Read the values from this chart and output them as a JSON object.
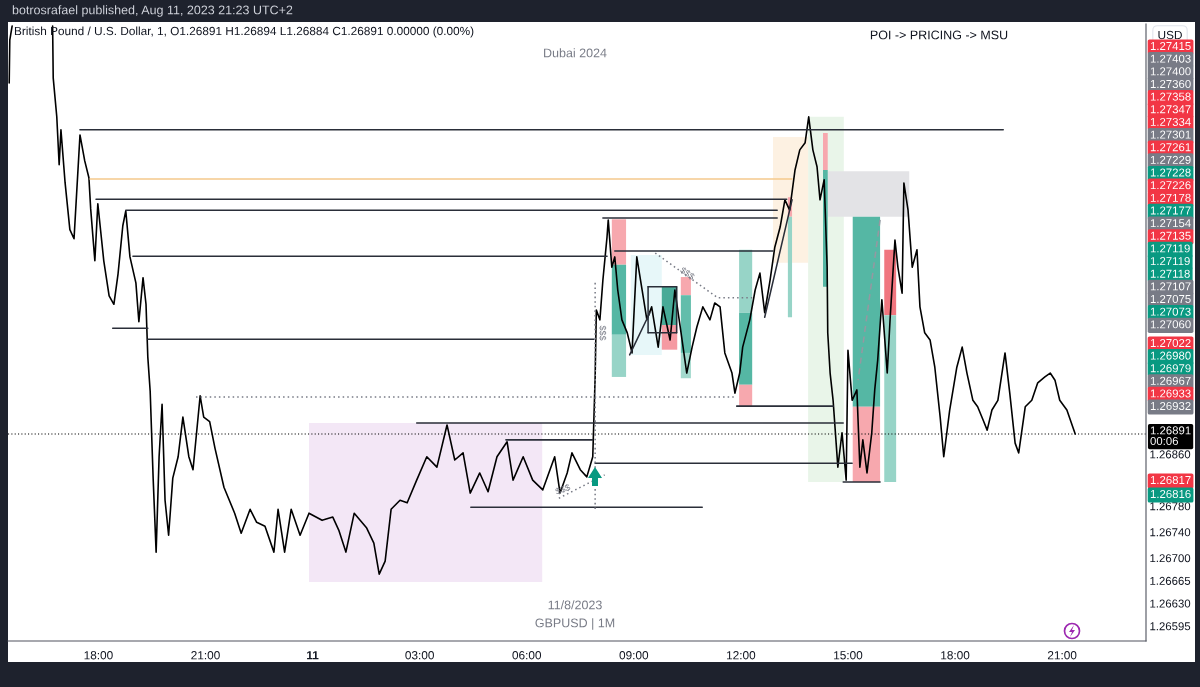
{
  "chart_data": {
    "type": "line",
    "title": "British Pound / U.S. Dollar, 1, O1.26891 H1.26894 L1.26884 C1.26891 0.00000 (0.00%)",
    "ylabel": "USD",
    "xlim": [
      "2023-08-10T15:28",
      "2023-08-11T23:21"
    ],
    "ylim": [
      1.26572,
      1.27523
    ],
    "xticks": [
      {
        "value": "2023-08-10T18:00",
        "label": "18:00"
      },
      {
        "value": "2023-08-10T21:00",
        "label": "21:00"
      },
      {
        "value": "2023-08-11T00:00",
        "label": "11"
      },
      {
        "value": "2023-08-11T03:00",
        "label": "03:00"
      },
      {
        "value": "2023-08-11T06:00",
        "label": "06:00"
      },
      {
        "value": "2023-08-11T09:00",
        "label": "09:00"
      },
      {
        "value": "2023-08-11T12:00",
        "label": "12:00"
      },
      {
        "value": "2023-08-11T15:00",
        "label": "15:00"
      },
      {
        "value": "2023-08-11T18:00",
        "label": "18:00"
      },
      {
        "value": "2023-08-11T21:00",
        "label": "21:00"
      }
    ],
    "yticks": [
      1.26595,
      {
        "value": 1.2663,
        "label": "1.26630"
      },
      1.26665,
      {
        "value": 1.267,
        "label": "1.26700"
      },
      {
        "value": 1.2674,
        "label": "1.26740"
      },
      {
        "value": 1.2678,
        "label": "1.26780"
      },
      {
        "value": 1.2686,
        "label": "1.26860"
      }
    ],
    "series": [
      {
        "color": "#000000",
        "x": [
          "2023-08-10T15:30",
          "2023-08-10T15:31",
          "2023-08-10T15:35",
          "2023-08-10T16:05",
          "2023-08-10T16:43",
          "2023-08-10T16:44",
          "2023-08-10T16:50",
          "2023-08-10T16:54",
          "2023-08-10T16:57",
          "2023-08-10T17:04",
          "2023-08-10T17:12",
          "2023-08-10T17:19",
          "2023-08-10T17:29",
          "2023-08-10T17:37",
          "2023-08-10T17:44",
          "2023-08-10T17:47",
          "2023-08-10T17:54",
          "2023-08-10T17:59",
          "2023-08-10T18:09",
          "2023-08-10T18:18",
          "2023-08-10T18:26",
          "2023-08-10T18:33",
          "2023-08-10T18:41",
          "2023-08-10T18:46",
          "2023-08-10T18:53",
          "2023-08-10T19:03",
          "2023-08-10T19:08",
          "2023-08-10T19:15",
          "2023-08-10T19:20",
          "2023-08-10T19:23",
          "2023-08-10T19:27",
          "2023-08-10T19:32",
          "2023-08-10T19:37",
          "2023-08-10T19:42",
          "2023-08-10T19:47",
          "2023-08-10T19:52",
          "2023-08-10T19:58",
          "2023-08-10T20:05",
          "2023-08-10T20:14",
          "2023-08-10T20:22",
          "2023-08-10T20:32",
          "2023-08-10T20:39",
          "2023-08-10T20:51",
          "2023-08-10T20:57",
          "2023-08-10T21:07",
          "2023-08-10T21:16",
          "2023-08-10T21:31",
          "2023-08-10T21:49",
          "2023-08-10T22:00",
          "2023-08-10T22:15",
          "2023-08-10T22:26",
          "2023-08-10T22:40",
          "2023-08-10T22:55",
          "2023-08-10T23:02",
          "2023-08-10T23:13",
          "2023-08-10T23:24",
          "2023-08-10T23:39",
          "2023-08-10T23:54",
          "2023-08-11T00:16",
          "2023-08-11T00:34",
          "2023-08-11T00:44",
          "2023-08-11T00:56",
          "2023-08-11T01:10",
          "2023-08-11T01:31",
          "2023-08-11T01:43",
          "2023-08-11T01:52",
          "2023-08-11T02:02",
          "2023-08-11T02:12",
          "2023-08-11T02:27",
          "2023-08-11T02:39",
          "2023-08-11T02:55",
          "2023-08-11T03:12",
          "2023-08-11T03:29",
          "2023-08-11T03:46",
          "2023-08-11T03:59",
          "2023-08-11T04:13",
          "2023-08-11T04:25",
          "2023-08-11T04:41",
          "2023-08-11T04:55",
          "2023-08-11T05:10",
          "2023-08-11T05:27",
          "2023-08-11T05:37",
          "2023-08-11T05:54",
          "2023-08-11T06:10",
          "2023-08-11T06:27",
          "2023-08-11T06:47",
          "2023-08-11T06:56",
          "2023-08-11T07:08",
          "2023-08-11T07:16",
          "2023-08-11T07:30",
          "2023-08-11T07:41",
          "2023-08-11T07:51",
          "2023-08-11T07:55",
          "2023-08-11T07:57",
          "2023-08-11T08:03",
          "2023-08-11T08:08",
          "2023-08-11T08:15",
          "2023-08-11T08:17",
          "2023-08-11T08:23",
          "2023-08-11T08:28",
          "2023-08-11T08:33",
          "2023-08-11T08:40",
          "2023-08-11T08:49",
          "2023-08-11T08:57",
          "2023-08-11T09:05",
          "2023-08-11T09:14",
          "2023-08-11T09:22",
          "2023-08-11T09:30",
          "2023-08-11T09:41",
          "2023-08-11T09:49",
          "2023-08-11T10:01",
          "2023-08-11T10:09",
          "2023-08-11T10:18",
          "2023-08-11T10:29",
          "2023-08-11T10:38",
          "2023-08-11T10:46",
          "2023-08-11T10:56",
          "2023-08-11T11:08",
          "2023-08-11T11:16",
          "2023-08-11T11:25",
          "2023-08-11T11:33",
          "2023-08-11T11:45",
          "2023-08-11T11:50",
          "2023-08-11T11:58",
          "2023-08-11T12:03",
          "2023-08-11T12:15",
          "2023-08-11T12:24",
          "2023-08-11T12:32",
          "2023-08-11T12:40",
          "2023-08-11T12:49",
          "2023-08-11T12:57",
          "2023-08-11T13:06",
          "2023-08-11T13:14",
          "2023-08-11T13:22",
          "2023-08-11T13:31",
          "2023-08-11T13:39",
          "2023-08-11T13:48",
          "2023-08-11T13:54",
          "2023-08-11T14:01",
          "2023-08-11T14:08",
          "2023-08-11T14:13",
          "2023-08-11T14:20",
          "2023-08-11T14:25",
          "2023-08-11T14:26",
          "2023-08-11T14:30",
          "2023-08-11T14:35",
          "2023-08-11T14:43",
          "2023-08-11T14:50",
          "2023-08-11T14:57",
          "2023-08-11T15:00",
          "2023-08-11T15:07",
          "2023-08-11T15:15",
          "2023-08-11T15:20",
          "2023-08-11T15:25",
          "2023-08-11T15:32",
          "2023-08-11T15:40",
          "2023-08-11T15:45",
          "2023-08-11T15:50",
          "2023-08-11T15:57",
          "2023-08-11T16:06",
          "2023-08-11T16:11",
          "2023-08-11T16:19",
          "2023-08-11T16:24",
          "2023-08-11T16:31",
          "2023-08-11T16:34",
          "2023-08-11T16:41",
          "2023-08-11T16:48",
          "2023-08-11T16:56",
          "2023-08-11T17:01",
          "2023-08-11T17:09",
          "2023-08-11T17:18",
          "2023-08-11T17:26",
          "2023-08-11T17:35",
          "2023-08-11T17:41",
          "2023-08-11T17:51",
          "2023-08-11T18:03",
          "2023-08-11T18:12",
          "2023-08-11T18:20",
          "2023-08-11T18:30",
          "2023-08-11T18:38",
          "2023-08-11T18:47",
          "2023-08-11T18:54",
          "2023-08-11T19:02",
          "2023-08-11T19:12",
          "2023-08-11T19:24",
          "2023-08-11T19:32",
          "2023-08-11T19:41",
          "2023-08-11T19:47",
          "2023-08-11T19:58",
          "2023-08-11T20:09",
          "2023-08-11T20:19",
          "2023-08-11T20:31",
          "2023-08-11T20:40",
          "2023-08-11T20:48",
          "2023-08-11T20:56",
          "2023-08-11T21:08",
          "2023-08-11T21:22"
        ],
        "values": [
          1.27432,
          1.27498,
          1.2752,
          null,
          1.2752,
          1.2744,
          1.2738,
          1.27306,
          1.2736,
          1.27278,
          1.27206,
          1.27192,
          1.27352,
          1.27312,
          1.27286,
          1.27238,
          1.27158,
          1.27246,
          1.27158,
          1.27104,
          1.27091,
          1.27138,
          1.27212,
          1.27235,
          1.27164,
          1.27124,
          1.27064,
          1.27132,
          1.27091,
          1.2701,
          1.26957,
          1.26823,
          1.26709,
          1.26856,
          1.26937,
          1.26789,
          1.26735,
          1.26823,
          1.26856,
          1.26917,
          1.26856,
          1.26836,
          1.2695,
          1.26917,
          1.2691,
          1.26869,
          1.26809,
          1.26769,
          1.26738,
          1.26775,
          1.26755,
          1.26749,
          1.26709,
          1.26775,
          1.26709,
          1.26775,
          1.26735,
          1.26769,
          1.26758,
          1.26763,
          1.26743,
          1.26709,
          1.26769,
          1.26746,
          1.26723,
          1.26675,
          1.26695,
          1.26775,
          1.26789,
          1.26785,
          1.2682,
          1.26856,
          1.2684,
          1.26905,
          1.26851,
          1.26862,
          1.268,
          1.26831,
          1.26802,
          1.26856,
          1.26879,
          1.2682,
          1.26856,
          1.2682,
          1.26805,
          1.26856,
          1.268,
          1.26831,
          1.26862,
          1.26836,
          1.26825,
          1.26856,
          1.26979,
          1.27082,
          1.27067,
          1.27128,
          1.27195,
          1.27221,
          1.27148,
          1.27164,
          1.27113,
          1.27067,
          1.27047,
          1.27016,
          1.27164,
          1.27113,
          1.27067,
          1.27087,
          1.27025,
          1.27087,
          1.27036,
          1.27113,
          1.27056,
          1.26985,
          1.27025,
          1.27056,
          1.27087,
          1.27067,
          1.27093,
          1.27087,
          1.27016,
          1.26985,
          1.26954,
          1.26985,
          1.27025,
          1.27067,
          1.27113,
          1.27139,
          1.27078,
          1.27128,
          1.27179,
          1.2721,
          1.27252,
          1.27236,
          1.27298,
          1.27329,
          1.2734,
          1.2738,
          1.27329,
          1.27303,
          1.27252,
          1.27283,
          1.27148,
          1.27047,
          1.26985,
          1.26943,
          1.2684,
          1.26893,
          1.2682,
          1.2702,
          1.26943,
          1.26959,
          1.2684,
          1.26882,
          1.26831,
          1.26893,
          1.26959,
          1.27005,
          1.27098,
          1.26985,
          1.27071,
          1.2719,
          1.27148,
          1.27108,
          1.27278,
          1.27236,
          1.27148,
          1.27175,
          1.27087,
          1.27047,
          1.27036,
          1.26994,
          1.26917,
          1.26856,
          1.26928,
          1.26994,
          1.27025,
          1.26985,
          1.26943,
          1.26933,
          1.26913,
          1.26897,
          1.26928,
          1.26943,
          1.27016,
          1.26954,
          1.26877,
          1.26862,
          1.26933,
          1.26943,
          1.2697,
          1.26979,
          1.26985,
          1.26974,
          1.26943,
          1.26928,
          1.26891
        ]
      },
      {
        "x": [
          "2023-08-11T13:53",
          "2023-08-11T14:53"
        ],
        "values": [
          null,
          null
        ],
        "lower": [
          1.26817,
          1.26817
        ],
        "upper": [
          1.2738,
          1.2738
        ],
        "color": "#e9f5e9"
      },
      {
        "x": [
          "2023-08-11T12:54",
          "2023-08-11T13:53"
        ],
        "values": [
          null,
          null
        ],
        "lower": [
          1.27155,
          1.27155
        ],
        "upper": [
          1.27349,
          1.27349
        ],
        "color": "#fdf1e2"
      },
      {
        "x": [
          "2023-08-11T14:26",
          "2023-08-11T16:43"
        ],
        "values": [
          null,
          null
        ],
        "lower": [
          1.27226,
          1.27226
        ],
        "upper": [
          1.27296,
          1.27296
        ],
        "color": "#e3e3e6"
      },
      {
        "x": [
          "2023-08-10T23:54",
          "2023-08-11T06:26"
        ],
        "values": [
          null,
          null
        ],
        "lower": [
          1.26663,
          1.26663
        ],
        "upper": [
          1.26908,
          1.26908
        ],
        "color": "#f3e7f6"
      },
      {
        "x": [
          "2023-08-11T08:55",
          "2023-08-11T09:47"
        ],
        "values": [
          null,
          null
        ],
        "lower": [
          1.27013,
          1.27013
        ],
        "upper": [
          1.27167,
          1.27167
        ],
        "color": "#e7f7f9"
      },
      {
        "x": [
          "2023-08-11T08:23",
          "2023-08-11T08:47"
        ],
        "values": [
          null,
          null
        ],
        "lower": [
          1.27152,
          1.27152
        ],
        "upper": [
          1.27222,
          1.27222
        ],
        "color": "#f7a8ae"
      },
      {
        "x": [
          "2023-08-11T08:23",
          "2023-08-11T08:47"
        ],
        "values": [
          null,
          null
        ],
        "lower": [
          1.27044,
          1.27044
        ],
        "upper": [
          1.27152,
          1.27152
        ],
        "color": "#55b7a4"
      },
      {
        "x": [
          "2023-08-11T08:23",
          "2023-08-11T08:47"
        ],
        "values": [
          null,
          null
        ],
        "lower": [
          1.26979,
          1.26979
        ],
        "upper": [
          1.27044,
          1.27044
        ],
        "color": "#97d4c7"
      },
      {
        "x": [
          "2023-08-11T09:47",
          "2023-08-11T10:13"
        ],
        "values": [
          null,
          null
        ],
        "lower": [
          1.27059,
          1.27059
        ],
        "upper": [
          1.27118,
          1.27118
        ],
        "color": "#48aa97"
      },
      {
        "x": [
          "2023-08-11T09:47",
          "2023-08-11T10:13"
        ],
        "values": [
          null,
          null
        ],
        "lower": [
          1.27021,
          1.27021
        ],
        "upper": [
          1.27059,
          1.27059
        ],
        "color": "#f59aa2"
      },
      {
        "x": [
          "2023-08-11T10:19",
          "2023-08-11T10:36"
        ],
        "values": [
          null,
          null
        ],
        "lower": [
          1.27105,
          1.27105
        ],
        "upper": [
          1.27133,
          1.27133
        ],
        "color": "#f7a8ae"
      },
      {
        "x": [
          "2023-08-11T10:19",
          "2023-08-11T10:36"
        ],
        "values": [
          null,
          null
        ],
        "lower": [
          1.27016,
          1.27016
        ],
        "upper": [
          1.27105,
          1.27105
        ],
        "color": "#62bdab"
      },
      {
        "x": [
          "2023-08-11T10:19",
          "2023-08-11T10:36"
        ],
        "values": [
          null,
          null
        ],
        "lower": [
          1.26977,
          1.26977
        ],
        "upper": [
          1.27016,
          1.27016
        ],
        "color": "#a3d9cd"
      },
      {
        "x": [
          "2023-08-11T11:57",
          "2023-08-11T12:19"
        ],
        "values": [
          null,
          null
        ],
        "lower": [
          1.27078,
          1.27078
        ],
        "upper": [
          1.27175,
          1.27175
        ],
        "color": "#97d4c7"
      },
      {
        "x": [
          "2023-08-11T11:57",
          "2023-08-11T12:19"
        ],
        "values": [
          null,
          null
        ],
        "lower": [
          1.26967,
          1.26967
        ],
        "upper": [
          1.27078,
          1.27078
        ],
        "color": "#55b7a4"
      },
      {
        "x": [
          "2023-08-11T11:57",
          "2023-08-11T12:19"
        ],
        "values": [
          null,
          null
        ],
        "lower": [
          1.26934,
          1.26934
        ],
        "upper": [
          1.26967,
          1.26967
        ],
        "color": "#f7a8ae"
      },
      {
        "x": [
          "2023-08-11T13:19",
          "2023-08-11T13:26"
        ],
        "values": [
          null,
          null
        ],
        "lower": [
          1.27226,
          1.27226
        ],
        "upper": [
          1.27256,
          1.27256
        ],
        "color": "#f7a8ae"
      },
      {
        "x": [
          "2023-08-11T13:19",
          "2023-08-11T13:26"
        ],
        "values": [
          null,
          null
        ],
        "lower": [
          1.27071,
          1.27071
        ],
        "upper": [
          1.27226,
          1.27226
        ],
        "color": "#97d4c7"
      },
      {
        "x": [
          "2023-08-11T14:18",
          "2023-08-11T14:26"
        ],
        "values": [
          null,
          null
        ],
        "lower": [
          1.27298,
          1.27298
        ],
        "upper": [
          1.27355,
          1.27355
        ],
        "color": "#f7a8ae"
      },
      {
        "x": [
          "2023-08-11T14:18",
          "2023-08-11T14:26"
        ],
        "values": [
          null,
          null
        ],
        "lower": [
          1.27118,
          1.27118
        ],
        "upper": [
          1.27298,
          1.27298
        ],
        "color": "#55b7a4"
      },
      {
        "x": [
          "2023-08-11T15:08",
          "2023-08-11T15:54"
        ],
        "values": [
          null,
          null
        ],
        "lower": [
          1.26933,
          1.26933
        ],
        "upper": [
          1.27226,
          1.27226
        ],
        "color": "#55b7a4"
      },
      {
        "x": [
          "2023-08-11T15:08",
          "2023-08-11T15:54"
        ],
        "values": [
          null,
          null
        ],
        "lower": [
          1.26817,
          1.26817
        ],
        "upper": [
          1.26933,
          1.26933
        ],
        "color": "#f7a8ae"
      },
      {
        "x": [
          "2023-08-11T16:01",
          "2023-08-11T16:21"
        ],
        "values": [
          null,
          null
        ],
        "lower": [
          1.27074,
          1.27074
        ],
        "upper": [
          1.27175,
          1.27175
        ],
        "color": "#f0767f"
      },
      {
        "x": [
          "2023-08-11T16:01",
          "2023-08-11T16:21"
        ],
        "values": [
          null,
          null
        ],
        "lower": [
          1.26817,
          1.26817
        ],
        "upper": [
          1.27074,
          1.27074
        ],
        "color": "#97d4c7"
      },
      {
        "x": [
          "2023-08-10T17:29",
          "2023-08-11T19:21"
        ],
        "values": [
          1.2736,
          1.2736
        ],
        "color": "#2a2e39"
      },
      {
        "x": [
          "2023-08-10T17:46",
          "2023-08-11T13:26"
        ],
        "values": [
          1.27284,
          1.27284
        ],
        "color": "#f5c98c"
      },
      {
        "x": [
          "2023-08-10T17:56",
          "2023-08-11T13:17"
        ],
        "values": [
          1.27253,
          1.27253
        ],
        "color": "#2a2e39"
      },
      {
        "x": [
          "2023-08-10T18:46",
          "2023-08-11T13:01"
        ],
        "values": [
          1.27236,
          1.27236
        ],
        "color": "#2a2e39"
      },
      {
        "x": [
          "2023-08-11T08:08",
          "2023-08-11T13:01"
        ],
        "values": [
          1.27224,
          1.27224
        ],
        "color": "#2a2e39"
      },
      {
        "x": [
          "2023-08-10T18:58",
          "2023-08-11T08:15"
        ],
        "values": [
          1.27165,
          1.27165
        ],
        "color": "#2a2e39"
      },
      {
        "x": [
          "2023-08-11T08:28",
          "2023-08-11T12:54"
        ],
        "values": [
          1.27173,
          1.27173
        ],
        "color": "#2a2e39"
      },
      {
        "x": [
          "2023-08-10T18:24",
          "2023-08-10T19:23"
        ],
        "values": [
          1.27054,
          1.27054
        ],
        "color": "#2a2e39"
      },
      {
        "x": [
          "2023-08-10T19:23",
          "2023-08-11T07:53"
        ],
        "values": [
          1.27037,
          1.27037
        ],
        "color": "#2a2e39"
      },
      {
        "x": [
          "2023-08-10T20:44",
          "2023-08-11T11:53"
        ],
        "values": [
          1.26948,
          1.26948
        ],
        "color": "#787b86",
        "line_style": "dotted"
      },
      {
        "x": [
          "2023-08-11T11:53",
          "2023-08-11T14:35"
        ],
        "values": [
          1.26934,
          1.26934
        ],
        "color": "#2a2e39"
      },
      {
        "x": [
          "2023-08-11T02:55",
          "2023-08-11T14:52"
        ],
        "values": [
          1.26908,
          1.26908
        ],
        "color": "#2a2e39"
      },
      {
        "x": [
          "2023-08-11T05:25",
          "2023-08-11T07:51"
        ],
        "values": [
          1.26882,
          1.26882
        ],
        "color": "#2a2e39"
      },
      {
        "x": [
          "2023-08-11T07:55",
          "2023-08-11T15:07"
        ],
        "values": [
          1.26846,
          1.26846
        ],
        "color": "#2a2e39"
      },
      {
        "x": [
          "2023-08-11T04:26",
          "2023-08-11T10:55"
        ],
        "values": [
          1.26778,
          1.26778
        ],
        "color": "#2a2e39"
      },
      {
        "x": [
          "2023-08-11T14:52",
          "2023-08-11T15:54"
        ],
        "values": [
          1.26817,
          1.26817
        ],
        "color": "#2a2e39"
      },
      {
        "x": [
          "2023-08-11T09:24",
          "2023-08-11T10:12"
        ],
        "values": [
          1.27118,
          1.27118
        ],
        "color": "#2a2e39"
      },
      {
        "x": [
          "2023-08-11T09:24",
          "2023-08-11T10:12"
        ],
        "values": [
          1.27047,
          1.27047
        ],
        "color": "#2a2e39"
      },
      {
        "x": [
          "2023-08-11T09:24",
          "2023-08-11T09:24"
        ],
        "values": [
          1.27118,
          1.27047
        ],
        "color": "#2a2e39"
      },
      {
        "x": [
          "2023-08-11T10:12",
          "2023-08-11T10:12"
        ],
        "values": [
          1.27118,
          1.27047
        ],
        "color": "#2a2e39"
      },
      {
        "x": [
          "2023-08-11T08:53",
          "2023-08-11T09:27"
        ],
        "values": [
          1.27013,
          1.27078
        ],
        "color": "#2a2e39"
      },
      {
        "x": [
          "2023-08-11T12:40",
          "2023-08-11T13:26"
        ],
        "values": [
          1.27071,
          1.27252
        ],
        "color": "#2a2e39"
      },
      {
        "x": [
          "2023-08-11T09:36",
          "2023-08-11T11:21",
          "2023-08-11T12:19"
        ],
        "values": [
          1.2717,
          1.27101,
          1.27101
        ],
        "color": "#787b86",
        "line_style": "dotted"
      },
      {
        "x": [
          "2023-08-11T06:54",
          "2023-08-11T08:11"
        ],
        "values": [
          1.26792,
          1.26828
        ],
        "color": "#787b86",
        "line_style": "dotted"
      },
      {
        "x": [
          "2023-08-11T07:55",
          "2023-08-11T07:55"
        ],
        "values": [
          1.27124,
          1.26771
        ],
        "color": "#787b86",
        "line_style": "dotted"
      },
      {
        "x": [
          "2023-08-11T15:54",
          "2023-08-11T15:17"
        ],
        "values": [
          1.27221,
          1.26974
        ],
        "color": "#9598a1",
        "line_style": "dashed"
      }
    ],
    "ref_lines": [
      {
        "axis": "y",
        "value": 1.26891,
        "label": "1.26891\n00:06",
        "color": "#000000",
        "line_style": "dotted"
      }
    ],
    "annotations": [
      "botrosrafael published, Aug 11, 2023 21:23 UTC+2",
      "POI -> PRICING -> MSU",
      "Dubai 2024",
      "11/8/2023",
      "GBPUSD | 1M",
      "$$$",
      "$$$",
      "$$$",
      "1.27415",
      "1.27403",
      "1.27400",
      "1.27360",
      "1.27358",
      "1.27347",
      "1.27334",
      "1.27301",
      "1.27261",
      "1.27229",
      "1.27228",
      "1.27226",
      "1.27178",
      "1.27177",
      "1.27154",
      "1.27135",
      "1.27119",
      "1.27119",
      "1.27118",
      "1.27107",
      "1.27075",
      "1.27073",
      "1.27060",
      "1.27022",
      "1.26980",
      "1.26979",
      "1.26967",
      "1.26933",
      "1.26932",
      "1.26817",
      "1.26816"
    ]
  }
}
